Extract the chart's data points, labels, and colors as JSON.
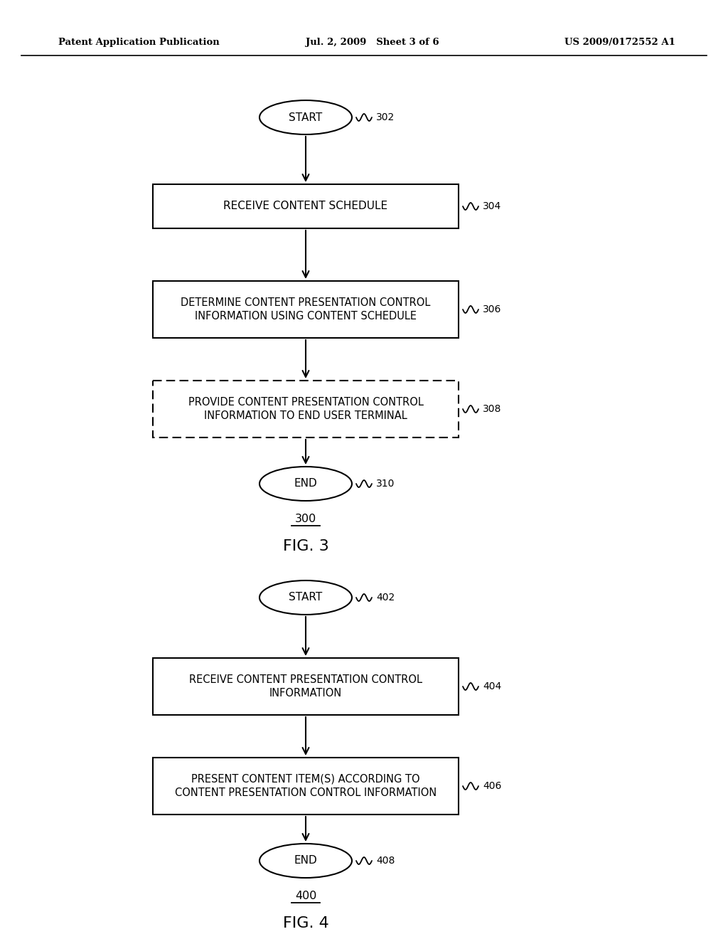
{
  "bg_color": "#ffffff",
  "header_left": "Patent Application Publication",
  "header_mid": "Jul. 2, 2009   Sheet 3 of 6",
  "header_right": "US 2009/0172552 A1",
  "fig3": {
    "label": "300",
    "caption": "FIG. 3",
    "start_label": "START",
    "start_ref": "302",
    "box1_label": "RECEIVE CONTENT SCHEDULE",
    "box1_ref": "304",
    "box2_label": "DETERMINE CONTENT PRESENTATION CONTROL\nINFORMATION USING CONTENT SCHEDULE",
    "box2_ref": "306",
    "box3_label": "PROVIDE CONTENT PRESENTATION CONTROL\nINFORMATION TO END USER TERMINAL",
    "box3_ref": "308",
    "box3_dashed": true,
    "end_label": "END",
    "end_ref": "310"
  },
  "fig4": {
    "label": "400",
    "caption": "FIG. 4",
    "start_label": "START",
    "start_ref": "402",
    "box1_label": "RECEIVE CONTENT PRESENTATION CONTROL\nINFORMATION",
    "box1_ref": "404",
    "box2_label": "PRESENT CONTENT ITEM(S) ACCORDING TO\nCONTENT PRESENTATION CONTROL INFORMATION",
    "box2_ref": "406",
    "end_label": "END",
    "end_ref": "408"
  }
}
